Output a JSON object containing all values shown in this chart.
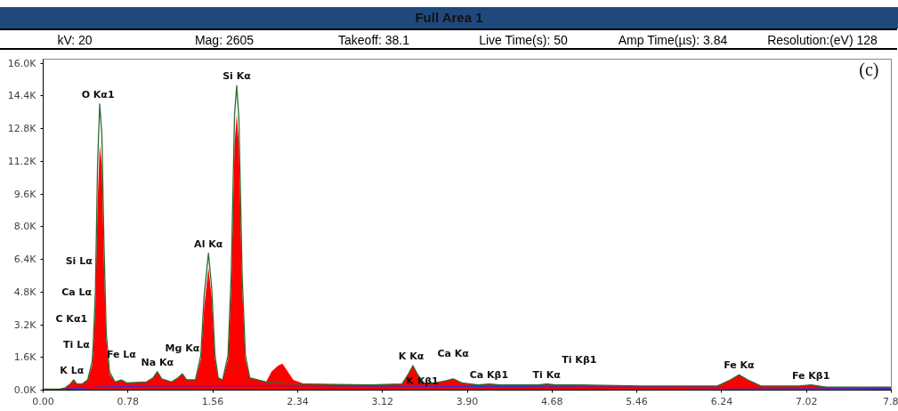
{
  "chart_data": {
    "type": "area",
    "title": "Full Area 1",
    "subtitle": "kV: 20  Mag: 2605  Takeoff: 38.1  Live Time(s): 50  Amp Time(µs): 3.84  Resolution:(eV) 128",
    "x": [
      0.0,
      0.15,
      0.2,
      0.25,
      0.28,
      0.31,
      0.36,
      0.41,
      0.45,
      0.46,
      0.47,
      0.48,
      0.485,
      0.5,
      0.52,
      0.54,
      0.56,
      0.58,
      0.61,
      0.66,
      0.72,
      0.77,
      0.95,
      1.01,
      1.05,
      1.09,
      1.18,
      1.24,
      1.28,
      1.32,
      1.4,
      1.45,
      1.48,
      1.52,
      1.55,
      1.58,
      1.61,
      1.65,
      1.7,
      1.73,
      1.76,
      1.78,
      1.8,
      1.83,
      1.86,
      1.9,
      2.05,
      2.1,
      2.16,
      2.2,
      2.25,
      2.3,
      2.4,
      3.0,
      3.3,
      3.36,
      3.4,
      3.44,
      3.5,
      3.6,
      3.7,
      3.77,
      3.85,
      4.0,
      4.1,
      4.2,
      4.55,
      4.63,
      4.72,
      4.93,
      5.5,
      6.2,
      6.32,
      6.4,
      6.48,
      6.6,
      6.95,
      7.06,
      7.2,
      7.8
    ],
    "series": [
      {
        "color": "#ff0000",
        "values": [
          50,
          50,
          100,
          300,
          500,
          300,
          300,
          500,
          1200,
          1800,
          3000,
          4000,
          5500,
          9000,
          12000,
          11000,
          6000,
          2500,
          800,
          400,
          500,
          350,
          400,
          600,
          900,
          550,
          400,
          600,
          800,
          500,
          500,
          1500,
          4000,
          6000,
          4500,
          1500,
          600,
          500,
          1500,
          5000,
          12000,
          13500,
          12000,
          5000,
          1500,
          600,
          400,
          900,
          1200,
          1300,
          900,
          500,
          300,
          250,
          300,
          800,
          1200,
          800,
          350,
          350,
          450,
          550,
          350,
          250,
          300,
          250,
          250,
          300,
          250,
          250,
          200,
          200,
          500,
          750,
          500,
          200,
          200,
          250,
          150,
          150
        ]
      },
      {
        "type": "line",
        "color": "#2e6b2e",
        "values": [
          50,
          50,
          100,
          300,
          500,
          300,
          300,
          500,
          1400,
          2200,
          3500,
          4800,
          6300,
          11000,
          14000,
          12500,
          7000,
          2800,
          900,
          400,
          500,
          350,
          400,
          600,
          900,
          550,
          400,
          600,
          800,
          500,
          500,
          1700,
          4600,
          6700,
          5000,
          1700,
          600,
          500,
          1700,
          5800,
          13500,
          14900,
          13300,
          5600,
          1700,
          600,
          400,
          350,
          350,
          330,
          320,
          300,
          300,
          250,
          300,
          800,
          1200,
          800,
          350,
          350,
          450,
          550,
          350,
          250,
          300,
          250,
          250,
          300,
          250,
          250,
          200,
          200,
          500,
          750,
          500,
          200,
          200,
          250,
          150,
          150
        ]
      },
      {
        "type": "line",
        "color": "#3030e0",
        "x": [
          0.2,
          0.5,
          1.0,
          2.0,
          3.0,
          4.0,
          5.0,
          6.0,
          7.0,
          7.8
        ],
        "values": [
          50,
          150,
          200,
          220,
          200,
          180,
          150,
          130,
          100,
          80
        ]
      }
    ],
    "xlim": [
      0,
      7.8
    ],
    "xticks": [
      {
        "value": 0,
        "label": "0.00"
      },
      {
        "value": 0.78,
        "label": "0.78"
      },
      {
        "value": 1.56,
        "label": "1.56"
      },
      {
        "value": 2.34,
        "label": "2.34"
      },
      {
        "value": 3.12,
        "label": "3.12"
      },
      {
        "value": 3.9,
        "label": "3.90"
      },
      {
        "value": 4.68,
        "label": "4.68"
      },
      {
        "value": 5.46,
        "label": "5.46"
      },
      {
        "value": 6.24,
        "label": "6.24"
      },
      {
        "value": 7.02,
        "label": "7.02"
      },
      {
        "value": 7.8,
        "label": "7.8"
      }
    ],
    "ylim": [
      0,
      16200
    ],
    "yticks": [
      {
        "value": 0,
        "label": "0.0K"
      },
      {
        "value": 1600,
        "label": "1.6K"
      },
      {
        "value": 3200,
        "label": "3.2K"
      },
      {
        "value": 4800,
        "label": "4.8K"
      },
      {
        "value": 6400,
        "label": "6.4K"
      },
      {
        "value": 8000,
        "label": "8.0K"
      },
      {
        "value": 9600,
        "label": "9.6K"
      },
      {
        "value": 11200,
        "label": "11.2K"
      },
      {
        "value": 12800,
        "label": "12.8K"
      },
      {
        "value": 14400,
        "label": "14.4K"
      },
      {
        "value": 16000,
        "label": "16.0K"
      }
    ],
    "grid": false,
    "annotations": [
      {
        "text": "O  Kα1",
        "x": 0.52,
        "y": 14000
      },
      {
        "text": "Si Kα",
        "x": 1.78,
        "y": 14900
      },
      {
        "text": "Al Kα",
        "x": 1.52,
        "y": 6700
      },
      {
        "text": "Si Lα",
        "x": 0.485,
        "y": 6300
      },
      {
        "text": "Ca Lα",
        "x": 0.48,
        "y": 4800
      },
      {
        "text": "C  Kα1",
        "x": 0.47,
        "y": 3500
      },
      {
        "text": "Ti Lα",
        "x": 0.46,
        "y": 2200
      },
      {
        "text": "Na Kα",
        "x": 1.05,
        "y": 900
      },
      {
        "text": "K  Lα",
        "x": 0.28,
        "y": 500
      },
      {
        "text": "Fe Lα",
        "x": 0.72,
        "y": 500
      },
      {
        "text": "Mg Kα",
        "x": 1.28,
        "y": 800
      },
      {
        "text": "K  Kα",
        "x": 3.4,
        "y": 1200
      },
      {
        "text": "Ca Kα",
        "x": 3.77,
        "y": 550
      },
      {
        "text": "K  Kβ1",
        "x": 3.7,
        "y": 450
      },
      {
        "text": "Ca Kβ1",
        "x": 4.1,
        "y": 300
      },
      {
        "text": "Ti Kα",
        "x": 4.63,
        "y": 300
      },
      {
        "text": "Ti Kβ1",
        "x": 4.93,
        "y": 250
      },
      {
        "text": "Fe Kα",
        "x": 6.4,
        "y": 750
      },
      {
        "text": "Fe Kβ1",
        "x": 7.06,
        "y": 250
      },
      "(c)"
    ]
  }
}
